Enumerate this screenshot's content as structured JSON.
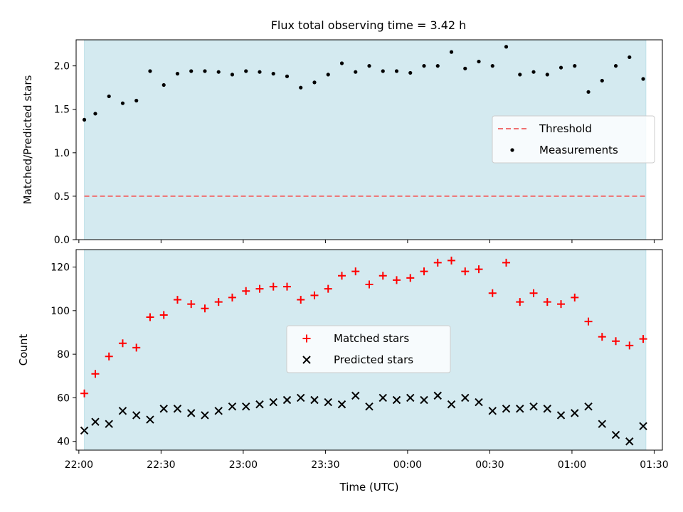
{
  "figure": {
    "title": "Flux total observing time = 3.42 h"
  },
  "chart_data": [
    {
      "type": "scatter",
      "panel": "top",
      "title": "Flux total observing time = 3.42 h",
      "xlabel": "",
      "ylabel": "Matched/Predicted stars",
      "ylim": [
        0,
        2.3
      ],
      "yticks": [
        0.0,
        0.5,
        1.0,
        1.5,
        2.0
      ],
      "ytick_labels": [
        "0.0",
        "0.5",
        "1.0",
        "1.5",
        "2.0"
      ],
      "xlim": [
        "21:59",
        "01:33"
      ],
      "xticks": [
        "22:00",
        "22:30",
        "23:00",
        "23:30",
        "00:00",
        "00:30",
        "01:00",
        "01:30"
      ],
      "observing_window": [
        "22:02",
        "01:27"
      ],
      "observing_window_color": "#d4eaf0",
      "legend": {
        "placement": "center-right",
        "entries": [
          {
            "label": "Threshold",
            "style": "dashed-line",
            "color": "#f07070"
          },
          {
            "label": "Measurements",
            "style": "dot",
            "color": "#000000"
          }
        ]
      },
      "threshold": 0.5,
      "x": [
        "22:02",
        "22:06",
        "22:11",
        "22:16",
        "22:21",
        "22:26",
        "22:31",
        "22:36",
        "22:41",
        "22:46",
        "22:51",
        "22:56",
        "23:01",
        "23:06",
        "23:11",
        "23:16",
        "23:21",
        "23:26",
        "23:31",
        "23:36",
        "23:41",
        "23:46",
        "23:51",
        "23:56",
        "00:01",
        "00:06",
        "00:11",
        "00:16",
        "00:21",
        "00:26",
        "00:31",
        "00:36",
        "00:41",
        "00:46",
        "00:51",
        "00:56",
        "01:01",
        "01:06",
        "01:11",
        "01:16",
        "01:21",
        "01:26"
      ],
      "series": [
        {
          "name": "Measurements",
          "values": [
            1.38,
            1.45,
            1.65,
            1.57,
            1.6,
            1.94,
            1.78,
            1.91,
            1.94,
            1.94,
            1.93,
            1.9,
            1.94,
            1.93,
            1.91,
            1.88,
            1.75,
            1.81,
            1.9,
            2.03,
            1.93,
            2.0,
            1.94,
            1.94,
            1.92,
            2.0,
            2.0,
            2.16,
            1.97,
            2.05,
            2.0,
            2.22,
            1.9,
            1.93,
            1.9,
            1.98,
            2.0,
            1.7,
            1.83,
            2.0,
            2.1,
            1.85
          ]
        }
      ]
    },
    {
      "type": "scatter",
      "panel": "bottom",
      "xlabel": "Time (UTC)",
      "ylabel": "Count",
      "ylim": [
        36,
        128
      ],
      "yticks": [
        40,
        60,
        80,
        100,
        120
      ],
      "xlim": [
        "21:59",
        "01:33"
      ],
      "xticks": [
        "22:00",
        "22:30",
        "23:00",
        "23:30",
        "00:00",
        "00:30",
        "01:00",
        "01:30"
      ],
      "observing_window": [
        "22:02",
        "01:27"
      ],
      "observing_window_color": "#d4eaf0",
      "legend": {
        "placement": "center",
        "entries": [
          {
            "label": "Matched stars",
            "style": "plus",
            "color": "#ff0000"
          },
          {
            "label": "Predicted stars",
            "style": "cross",
            "color": "#000000"
          }
        ]
      },
      "x": [
        "22:02",
        "22:06",
        "22:11",
        "22:16",
        "22:21",
        "22:26",
        "22:31",
        "22:36",
        "22:41",
        "22:46",
        "22:51",
        "22:56",
        "23:01",
        "23:06",
        "23:11",
        "23:16",
        "23:21",
        "23:26",
        "23:31",
        "23:36",
        "23:41",
        "23:46",
        "23:51",
        "23:56",
        "00:01",
        "00:06",
        "00:11",
        "00:16",
        "00:21",
        "00:26",
        "00:31",
        "00:36",
        "00:41",
        "00:46",
        "00:51",
        "00:56",
        "01:01",
        "01:06",
        "01:11",
        "01:16",
        "01:21",
        "01:26"
      ],
      "series": [
        {
          "name": "Matched stars",
          "marker": "plus",
          "color": "#ff0000",
          "values": [
            62,
            71,
            79,
            85,
            83,
            97,
            98,
            105,
            103,
            101,
            104,
            106,
            109,
            110,
            111,
            111,
            105,
            107,
            110,
            116,
            118,
            112,
            116,
            114,
            115,
            118,
            122,
            123,
            118,
            119,
            108,
            122,
            104,
            108,
            104,
            103,
            106,
            95,
            88,
            86,
            84,
            87
          ]
        },
        {
          "name": "Predicted stars",
          "marker": "cross",
          "color": "#000000",
          "values": [
            45,
            49,
            48,
            54,
            52,
            50,
            55,
            55,
            53,
            52,
            54,
            56,
            56,
            57,
            58,
            59,
            60,
            59,
            58,
            57,
            61,
            56,
            60,
            59,
            60,
            59,
            61,
            57,
            60,
            58,
            54,
            55,
            55,
            56,
            55,
            52,
            53,
            56,
            48,
            43,
            40,
            47
          ]
        }
      ]
    }
  ]
}
